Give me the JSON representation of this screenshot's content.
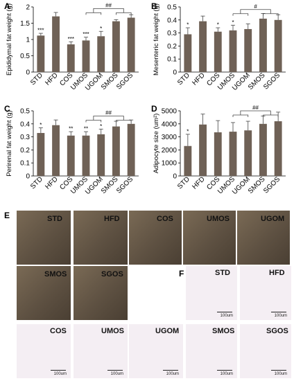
{
  "panel_letters": {
    "A": "A",
    "B": "B",
    "C": "C",
    "D": "D",
    "E": "E",
    "F": "F"
  },
  "colors": {
    "bar": "#6f6156",
    "photo_bg": "#5e5142",
    "histo_bg": "#f4eef3"
  },
  "chart_data": [
    {
      "type": "bar",
      "panel": "A",
      "categories": [
        "STD",
        "HFD",
        "COS",
        "UMOS",
        "UGOM",
        "SMOS",
        "SGOS"
      ],
      "values": [
        1.12,
        1.71,
        0.85,
        0.97,
        1.1,
        1.56,
        1.67
      ],
      "errors": [
        0.07,
        0.12,
        0.08,
        0.1,
        0.15,
        0.05,
        0.09
      ],
      "ylabel": "Epididymal  fat weight (g)",
      "ylim": [
        0,
        2
      ],
      "yticks": [
        "0",
        "0.5",
        "1",
        "1.5",
        "2"
      ],
      "significance": [
        "***",
        "",
        "***",
        "***",
        "*",
        "",
        ""
      ],
      "bracket_label": "##"
    },
    {
      "type": "bar",
      "panel": "B",
      "categories": [
        "STD",
        "HFD",
        "COS",
        "UMOS",
        "UGOM",
        "SMOS",
        "SGOS"
      ],
      "values": [
        0.29,
        0.39,
        0.31,
        0.32,
        0.33,
        0.41,
        0.4
      ],
      "errors": [
        0.05,
        0.04,
        0.03,
        0.04,
        0.04,
        0.04,
        0.04
      ],
      "ylabel": "Mesenteric fat weight (g)",
      "ylim": [
        0,
        0.5
      ],
      "yticks": [
        "0",
        "0.1",
        "0.2",
        "0.3",
        "0.4",
        "0.5"
      ],
      "significance": [
        "*",
        "",
        "*",
        "*",
        "",
        "",
        ""
      ],
      "bracket_label": "#"
    },
    {
      "type": "bar",
      "panel": "C",
      "categories": [
        "STD",
        "HFD",
        "COS",
        "UMOS",
        "UGOM",
        "SMOS",
        "SGOS"
      ],
      "values": [
        0.33,
        0.39,
        0.31,
        0.31,
        0.32,
        0.38,
        0.4
      ],
      "errors": [
        0.04,
        0.04,
        0.03,
        0.03,
        0.04,
        0.04,
        0.03
      ],
      "ylabel": "Perirenal  fat weight (g)",
      "ylim": [
        0,
        0.5
      ],
      "yticks": [
        "0",
        "0.1",
        "0.2",
        "0.3",
        "0.4",
        "0.5"
      ],
      "significance": [
        "*",
        "",
        "**",
        "**",
        "*",
        "",
        ""
      ],
      "bracket_label": "##"
    },
    {
      "type": "bar",
      "panel": "D",
      "categories": [
        "STD",
        "HFD",
        "COS",
        "UMOS",
        "UGOM",
        "SMOS",
        "SGOS"
      ],
      "values": [
        2300,
        3950,
        3350,
        3400,
        3500,
        4000,
        4200
      ],
      "errors": [
        900,
        800,
        900,
        700,
        700,
        600,
        700
      ],
      "ylabel": "Adipocyte size (um²)",
      "ylim": [
        0,
        5000
      ],
      "yticks": [
        "0",
        "1000",
        "2000",
        "3000",
        "4000",
        "5000"
      ],
      "significance": [
        "*",
        "",
        "",
        "",
        "",
        "",
        ""
      ],
      "bracket_label": "##"
    }
  ],
  "photos": [
    {
      "label": "STD"
    },
    {
      "label": "HFD"
    },
    {
      "label": "COS"
    },
    {
      "label": "UMOS"
    },
    {
      "label": "UGOM"
    },
    {
      "label": "SMOS"
    },
    {
      "label": "SGOS"
    }
  ],
  "histology": [
    {
      "label": "STD",
      "scale": "100um"
    },
    {
      "label": "HFD",
      "scale": "100um"
    },
    {
      "label": "COS",
      "scale": "100um"
    },
    {
      "label": "UMOS",
      "scale": "100um"
    },
    {
      "label": "UGOM",
      "scale": "100um"
    },
    {
      "label": "SMOS",
      "scale": "100um"
    },
    {
      "label": "SGOS",
      "scale": "100um"
    }
  ]
}
